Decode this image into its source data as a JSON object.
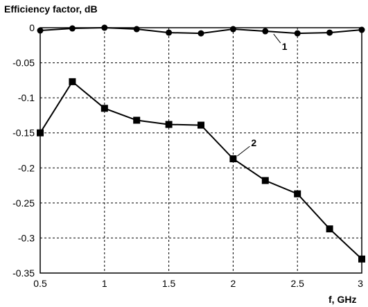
{
  "chart_data": {
    "type": "line",
    "ylabel": "Efficiency factor, dB",
    "xlabel": "f, GHz",
    "xlim": [
      0.5,
      3
    ],
    "ylim": [
      -0.35,
      0
    ],
    "xticks": [
      0.5,
      1,
      1.5,
      2,
      2.5,
      3
    ],
    "yticks": [
      0,
      -0.05,
      -0.1,
      -0.15,
      -0.2,
      -0.25,
      -0.3,
      -0.35
    ],
    "xtick_labels": [
      "0.5",
      "1",
      "1.5",
      "2",
      "2.5",
      "3"
    ],
    "ytick_labels": [
      "0",
      "-0.05",
      "-0.1",
      "-0.15",
      "-0.2",
      "-0.25",
      "-0.3",
      "-0.35"
    ],
    "grid": true,
    "x": [
      0.5,
      0.75,
      1.0,
      1.25,
      1.5,
      1.75,
      2.0,
      2.25,
      2.5,
      2.75,
      3.0
    ],
    "series": [
      {
        "label": "1",
        "marker": "circle",
        "color": "#000000",
        "values": [
          -0.004,
          -0.001,
          0.0,
          -0.002,
          -0.007,
          -0.008,
          -0.002,
          -0.005,
          -0.008,
          -0.007,
          -0.003
        ]
      },
      {
        "label": "2",
        "marker": "square",
        "color": "#000000",
        "values": [
          -0.15,
          -0.077,
          -0.115,
          -0.132,
          -0.138,
          -0.139,
          -0.187,
          -0.218,
          -0.237,
          -0.287,
          -0.33
        ]
      }
    ]
  }
}
